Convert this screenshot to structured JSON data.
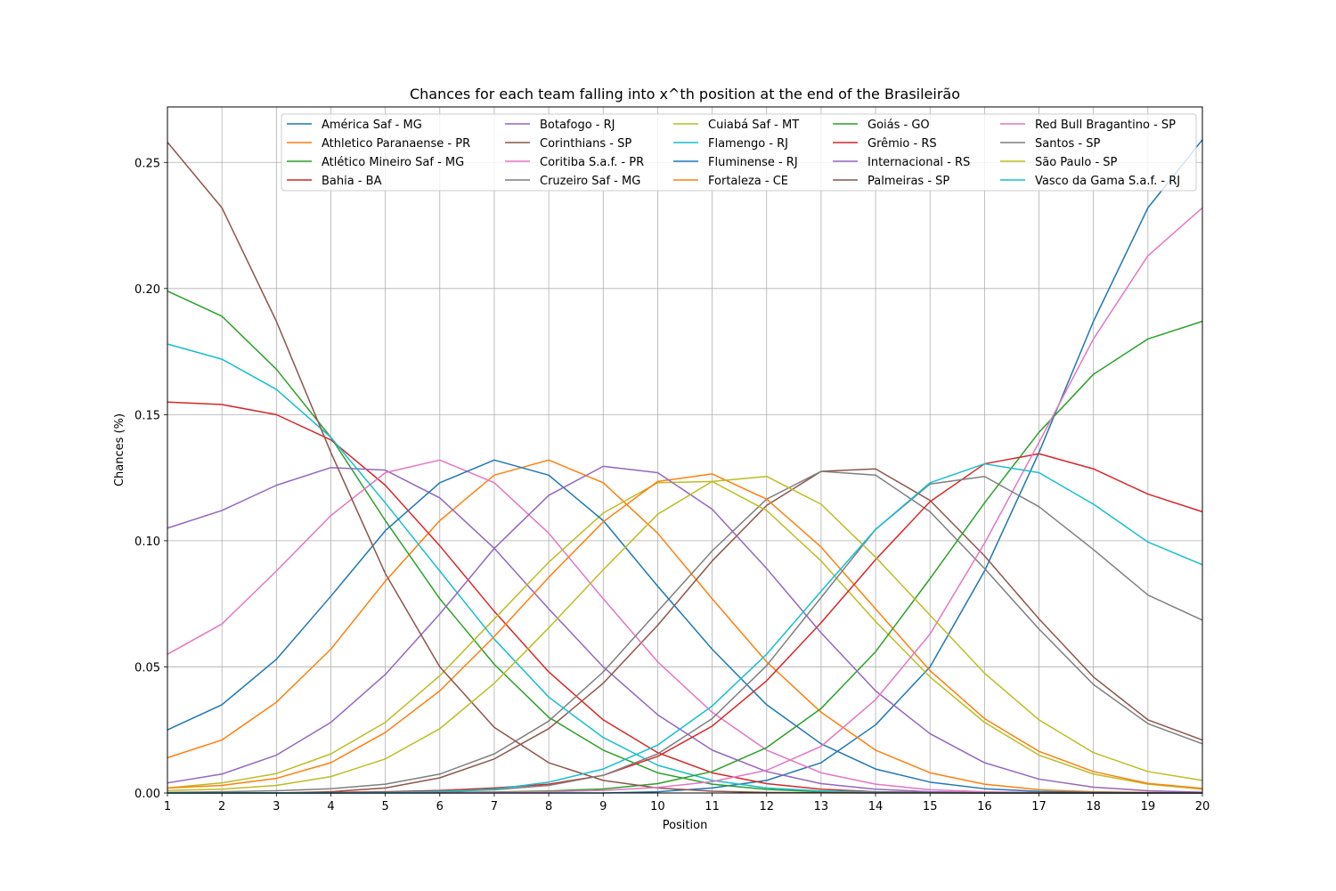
{
  "chart_data": {
    "type": "line",
    "title": "Chances for each team falling into x^th position at the end of the Brasileirão",
    "xlabel": "Position",
    "ylabel": "Chances (%)",
    "xlim": [
      1,
      20
    ],
    "ylim": [
      0,
      0.272
    ],
    "x": [
      1,
      2,
      3,
      4,
      5,
      6,
      7,
      8,
      9,
      10,
      11,
      12,
      13,
      14,
      15,
      16,
      17,
      18,
      19,
      20
    ],
    "xticks": [
      "1",
      "2",
      "3",
      "4",
      "5",
      "6",
      "7",
      "8",
      "9",
      "10",
      "11",
      "12",
      "13",
      "14",
      "15",
      "16",
      "17",
      "18",
      "19",
      "20"
    ],
    "yticks": [
      {
        "value": 0.0,
        "label": "0.00"
      },
      {
        "value": 0.05,
        "label": "0.05"
      },
      {
        "value": 0.1,
        "label": "0.10"
      },
      {
        "value": 0.15,
        "label": "0.15"
      },
      {
        "value": 0.2,
        "label": "0.20"
      },
      {
        "value": 0.25,
        "label": "0.25"
      }
    ],
    "grid": true,
    "legend_position": "top-right",
    "legend_columns": 5,
    "series": [
      {
        "name": "América Saf - MG",
        "color": "#1f77b4",
        "values": [
          0,
          0,
          0,
          0,
          0,
          0,
          0,
          0,
          0,
          0.0005,
          0.002,
          0.005,
          0.012,
          0.027,
          0.05,
          0.088,
          0.135,
          0.187,
          0.232,
          0.259
        ]
      },
      {
        "name": "Athletico Paranaense - PR",
        "color": "#ff7f0e",
        "values": [
          0.014,
          0.021,
          0.036,
          0.057,
          0.084,
          0.108,
          0.126,
          0.132,
          0.123,
          0.103,
          0.077,
          0.052,
          0.032,
          0.017,
          0.008,
          0.0035,
          0.0013,
          0.0005,
          0.0002,
          0.0001
        ]
      },
      {
        "name": "Atlético Mineiro Saf - MG",
        "color": "#2ca02c",
        "values": [
          0.199,
          0.189,
          0.168,
          0.141,
          0.108,
          0.077,
          0.051,
          0.03,
          0.017,
          0.008,
          0.0035,
          0.0014,
          0.0005,
          0.0002,
          0.0001,
          0,
          0,
          0,
          0,
          0
        ]
      },
      {
        "name": "Bahia - BA",
        "color": "#d62728",
        "values": [
          0.155,
          0.154,
          0.15,
          0.14,
          0.122,
          0.098,
          0.072,
          0.048,
          0.029,
          0.016,
          0.008,
          0.0037,
          0.0015,
          0.0005,
          0.0002,
          0.0001,
          0,
          0,
          0,
          0
        ]
      },
      {
        "name": "Botafogo - RJ",
        "color": "#9467bd",
        "values": [
          0.105,
          0.112,
          0.122,
          0.129,
          0.128,
          0.117,
          0.097,
          0.073,
          0.05,
          0.031,
          0.017,
          0.0085,
          0.0037,
          0.0015,
          0.0005,
          0.0002,
          0.0001,
          0,
          0,
          0
        ]
      },
      {
        "name": "Corinthians - SP",
        "color": "#8c564b",
        "values": [
          0,
          0,
          0,
          0.0005,
          0.002,
          0.006,
          0.0135,
          0.0255,
          0.0435,
          0.0665,
          0.092,
          0.114,
          0.1275,
          0.1285,
          0.116,
          0.094,
          0.069,
          0.046,
          0.029,
          0.021
        ]
      },
      {
        "name": "Coritiba S.a.f. - PR",
        "color": "#e377c2",
        "values": [
          0.055,
          0.067,
          0.088,
          0.11,
          0.127,
          0.132,
          0.123,
          0.103,
          0.077,
          0.052,
          0.032,
          0.017,
          0.008,
          0.0035,
          0.0013,
          0.0005,
          0.0002,
          0,
          0,
          0
        ]
      },
      {
        "name": "Cruzeiro Saf - MG",
        "color": "#7f7f7f",
        "values": [
          0.0002,
          0.0005,
          0.0009,
          0.0017,
          0.0035,
          0.0075,
          0.0155,
          0.0285,
          0.048,
          0.072,
          0.096,
          0.1165,
          0.1275,
          0.126,
          0.1115,
          0.089,
          0.065,
          0.043,
          0.0275,
          0.0195
        ]
      },
      {
        "name": "Cuiabá Saf - MT",
        "color": "#bcbd22",
        "values": [
          0.002,
          0.004,
          0.0077,
          0.0155,
          0.028,
          0.0465,
          0.069,
          0.0915,
          0.111,
          0.123,
          0.1235,
          0.112,
          0.092,
          0.068,
          0.046,
          0.028,
          0.015,
          0.0075,
          0.0035,
          0.0015
        ]
      },
      {
        "name": "Flamengo - RJ",
        "color": "#17becf",
        "values": [
          0.178,
          0.172,
          0.16,
          0.141,
          0.115,
          0.088,
          0.061,
          0.038,
          0.022,
          0.011,
          0.005,
          0.002,
          0.0008,
          0.0003,
          0.0001,
          0,
          0,
          0,
          0,
          0
        ]
      },
      {
        "name": "Fluminense - RJ",
        "color": "#1f77b4",
        "values": [
          0.025,
          0.035,
          0.053,
          0.078,
          0.104,
          0.123,
          0.132,
          0.126,
          0.108,
          0.082,
          0.057,
          0.035,
          0.0195,
          0.0095,
          0.0043,
          0.0017,
          0.0006,
          0.0002,
          0.0001,
          0
        ]
      },
      {
        "name": "Fortaleza - CE",
        "color": "#ff7f0e",
        "values": [
          0.002,
          0.003,
          0.0058,
          0.012,
          0.024,
          0.0405,
          0.062,
          0.0855,
          0.1075,
          0.1235,
          0.1265,
          0.1165,
          0.0975,
          0.073,
          0.0485,
          0.0295,
          0.0165,
          0.0085,
          0.0038,
          0.0018
        ]
      },
      {
        "name": "Goiás - GO",
        "color": "#2ca02c",
        "values": [
          0,
          0,
          0,
          0,
          0,
          0.0002,
          0.0004,
          0.0008,
          0.0016,
          0.0037,
          0.0085,
          0.018,
          0.0335,
          0.056,
          0.085,
          0.115,
          0.143,
          0.166,
          0.18,
          0.187
        ]
      },
      {
        "name": "Grêmio - RS",
        "color": "#d62728",
        "values": [
          0,
          0,
          0,
          0.0002,
          0.0005,
          0.001,
          0.002,
          0.0035,
          0.007,
          0.0145,
          0.0265,
          0.0445,
          0.0675,
          0.0925,
          0.1155,
          0.1305,
          0.1345,
          0.1285,
          0.1185,
          0.1115
        ]
      },
      {
        "name": "Internacional - RS",
        "color": "#9467bd",
        "values": [
          0.004,
          0.0075,
          0.015,
          0.028,
          0.047,
          0.071,
          0.097,
          0.118,
          0.1295,
          0.127,
          0.1125,
          0.089,
          0.0635,
          0.0405,
          0.0235,
          0.012,
          0.0055,
          0.0023,
          0.0009,
          0.0003
        ]
      },
      {
        "name": "Palmeiras - SP",
        "color": "#8c564b",
        "values": [
          0.258,
          0.232,
          0.187,
          0.135,
          0.087,
          0.05,
          0.026,
          0.012,
          0.005,
          0.002,
          0.0007,
          0.0002,
          0.0001,
          0,
          0,
          0,
          0,
          0,
          0,
          0
        ]
      },
      {
        "name": "Red Bull Bragantino - SP",
        "color": "#e377c2",
        "values": [
          0,
          0,
          0,
          0,
          0,
          0,
          0.0002,
          0.0005,
          0.001,
          0.0022,
          0.0045,
          0.009,
          0.0185,
          0.037,
          0.063,
          0.099,
          0.139,
          0.18,
          0.213,
          0.232
        ]
      },
      {
        "name": "Santos - SP",
        "color": "#7f7f7f",
        "values": [
          0,
          0,
          0,
          0,
          0.0002,
          0.0005,
          0.0013,
          0.003,
          0.007,
          0.0155,
          0.0295,
          0.0505,
          0.0775,
          0.1045,
          0.1225,
          0.1255,
          0.1135,
          0.0965,
          0.0785,
          0.0685
        ]
      },
      {
        "name": "São Paulo - SP",
        "color": "#bcbd22",
        "values": [
          0.001,
          0.0015,
          0.003,
          0.0065,
          0.0135,
          0.0255,
          0.0435,
          0.0655,
          0.0885,
          0.1105,
          0.1235,
          0.1255,
          0.1145,
          0.0935,
          0.0705,
          0.0475,
          0.029,
          0.016,
          0.0085,
          0.005
        ]
      },
      {
        "name": "Vasco da Gama S.a.f. - RJ",
        "color": "#17becf",
        "values": [
          0,
          0,
          0,
          0,
          0.0002,
          0.0006,
          0.0015,
          0.0043,
          0.0095,
          0.019,
          0.0345,
          0.055,
          0.08,
          0.1045,
          0.123,
          0.1305,
          0.127,
          0.1145,
          0.0995,
          0.0905
        ]
      }
    ]
  }
}
